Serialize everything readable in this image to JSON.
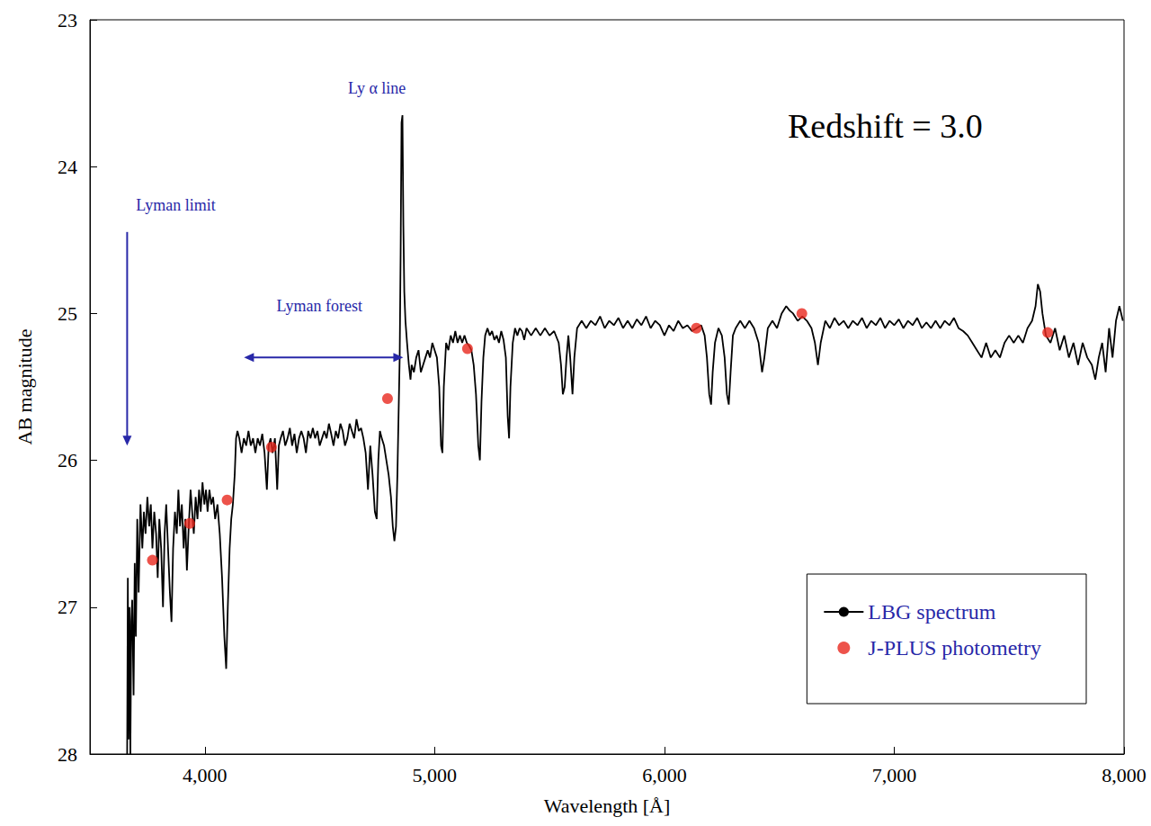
{
  "chart_data": {
    "type": "line",
    "x_label": "Wavelength [Å]",
    "y_label": "AB magnitude",
    "xlim": [
      3500,
      8000
    ],
    "xticks": [
      4000,
      5000,
      6000,
      7000,
      8000
    ],
    "ylim": [
      28,
      23
    ],
    "yticks": [
      23,
      24,
      25,
      26,
      27,
      28
    ],
    "grid": false,
    "legend": "lower right",
    "annotations": [
      "Ly α line",
      "Lyman limit",
      "Lyman forest",
      "Redshift = 3.0"
    ],
    "series": [
      {
        "name": "LBG spectrum",
        "type": "line",
        "color": "#000000",
        "line_style": "solid",
        "x": [
          3662,
          3665,
          3668,
          3672,
          3676,
          3680,
          3684,
          3690,
          3695,
          3700,
          3706,
          3712,
          3720,
          3728,
          3735,
          3742,
          3750,
          3758,
          3765,
          3772,
          3780,
          3788,
          3795,
          3802,
          3810,
          3818,
          3825,
          3832,
          3840,
          3848,
          3855,
          3862,
          3870,
          3878,
          3885,
          3892,
          3900,
          3908,
          3915,
          3922,
          3930,
          3938,
          3945,
          3952,
          3960,
          3968,
          3975,
          3982,
          3990,
          3998,
          4005,
          4012,
          4020,
          4028,
          4036,
          4045,
          4055,
          4065,
          4075,
          4085,
          4093,
          4100,
          4108,
          4115,
          4122,
          4130,
          4136,
          4142,
          4150,
          4160,
          4170,
          4180,
          4190,
          4200,
          4210,
          4220,
          4230,
          4240,
          4250,
          4260,
          4270,
          4278,
          4286,
          4295,
          4305,
          4315,
          4322,
          4330,
          4340,
          4350,
          4360,
          4370,
          4380,
          4390,
          4400,
          4410,
          4420,
          4430,
          4440,
          4450,
          4460,
          4470,
          4480,
          4490,
          4500,
          4510,
          4520,
          4530,
          4540,
          4550,
          4560,
          4570,
          4580,
          4590,
          4600,
          4610,
          4620,
          4630,
          4640,
          4650,
          4660,
          4670,
          4680,
          4690,
          4700,
          4710,
          4720,
          4730,
          4740,
          4748,
          4755,
          4762,
          4770,
          4780,
          4790,
          4800,
          4810,
          4818,
          4825,
          4832,
          4838,
          4843,
          4848,
          4852,
          4856,
          4860,
          4864,
          4868,
          4873,
          4880,
          4888,
          4895,
          4900,
          4910,
          4920,
          4930,
          4940,
          4950,
          4960,
          4970,
          4980,
          4990,
          5000,
          5010,
          5020,
          5028,
          5034,
          5040,
          5050,
          5060,
          5070,
          5080,
          5090,
          5100,
          5110,
          5120,
          5130,
          5140,
          5150,
          5160,
          5170,
          5180,
          5190,
          5197,
          5204,
          5212,
          5220,
          5230,
          5240,
          5250,
          5260,
          5270,
          5280,
          5290,
          5300,
          5310,
          5318,
          5324,
          5330,
          5340,
          5350,
          5360,
          5370,
          5380,
          5390,
          5400,
          5420,
          5440,
          5460,
          5480,
          5500,
          5520,
          5540,
          5550,
          5558,
          5566,
          5574,
          5582,
          5590,
          5600,
          5608,
          5620,
          5640,
          5660,
          5680,
          5700,
          5720,
          5740,
          5760,
          5780,
          5800,
          5820,
          5840,
          5860,
          5880,
          5900,
          5920,
          5940,
          5960,
          5980,
          6000,
          6020,
          6040,
          6060,
          6080,
          6100,
          6120,
          6140,
          6160,
          6175,
          6185,
          6195,
          6203,
          6210,
          6220,
          6235,
          6250,
          6262,
          6272,
          6280,
          6288,
          6298,
          6310,
          6330,
          6350,
          6370,
          6390,
          6410,
          6425,
          6435,
          6450,
          6470,
          6490,
          6510,
          6530,
          6545,
          6560,
          6580,
          6600,
          6620,
          6640,
          6655,
          6668,
          6680,
          6700,
          6720,
          6740,
          6760,
          6780,
          6800,
          6820,
          6840,
          6860,
          6880,
          6900,
          6920,
          6940,
          6960,
          6980,
          7000,
          7020,
          7040,
          7060,
          7080,
          7100,
          7120,
          7140,
          7160,
          7180,
          7200,
          7220,
          7240,
          7260,
          7280,
          7300,
          7320,
          7340,
          7360,
          7380,
          7400,
          7420,
          7440,
          7460,
          7480,
          7500,
          7520,
          7540,
          7560,
          7580,
          7600,
          7615,
          7625,
          7635,
          7645,
          7660,
          7680,
          7700,
          7720,
          7740,
          7760,
          7780,
          7800,
          7820,
          7840,
          7860,
          7875,
          7890,
          7905,
          7920,
          7935,
          7950,
          7965,
          7980,
          7995
        ],
        "values": [
          28.0,
          26.8,
          27.9,
          27.0,
          28.0,
          27.1,
          26.95,
          27.6,
          26.7,
          27.2,
          26.4,
          26.9,
          26.3,
          26.6,
          26.35,
          26.5,
          26.25,
          26.45,
          26.3,
          26.6,
          26.35,
          26.5,
          26.8,
          26.4,
          26.6,
          27.0,
          26.5,
          26.3,
          26.6,
          26.9,
          27.1,
          26.6,
          26.35,
          26.5,
          26.2,
          26.45,
          26.3,
          26.6,
          26.4,
          26.75,
          26.45,
          26.2,
          26.35,
          26.5,
          26.25,
          26.4,
          26.2,
          26.35,
          26.15,
          26.3,
          26.2,
          26.35,
          26.2,
          26.3,
          26.25,
          26.4,
          26.3,
          26.5,
          26.8,
          27.2,
          27.42,
          27.0,
          26.6,
          26.4,
          26.3,
          26.1,
          25.85,
          25.8,
          25.85,
          25.95,
          25.85,
          25.9,
          25.8,
          25.9,
          25.85,
          25.95,
          25.85,
          25.9,
          25.82,
          25.95,
          26.2,
          25.9,
          25.85,
          25.95,
          25.85,
          26.2,
          25.9,
          25.85,
          25.8,
          25.9,
          25.85,
          25.78,
          25.9,
          25.82,
          25.95,
          25.85,
          25.8,
          25.85,
          25.95,
          25.8,
          25.85,
          25.78,
          25.85,
          25.8,
          25.9,
          25.85,
          25.8,
          25.85,
          25.75,
          25.82,
          25.9,
          25.8,
          25.85,
          25.75,
          25.8,
          25.9,
          25.85,
          25.75,
          25.8,
          25.85,
          25.72,
          25.8,
          25.78,
          25.85,
          25.95,
          26.2,
          25.9,
          26.1,
          26.35,
          26.4,
          26.0,
          25.8,
          25.85,
          25.9,
          26.0,
          26.1,
          26.25,
          26.45,
          26.55,
          26.45,
          26.1,
          25.7,
          25.3,
          24.6,
          23.7,
          23.65,
          24.4,
          24.85,
          25.05,
          25.2,
          25.35,
          25.45,
          25.35,
          25.4,
          25.3,
          25.25,
          25.4,
          25.35,
          25.3,
          25.25,
          25.3,
          25.2,
          25.25,
          25.3,
          25.5,
          25.9,
          25.95,
          25.5,
          25.2,
          25.25,
          25.15,
          25.2,
          25.12,
          25.2,
          25.15,
          25.2,
          25.15,
          25.2,
          25.22,
          25.25,
          25.35,
          25.55,
          25.9,
          26.0,
          25.6,
          25.3,
          25.15,
          25.1,
          25.15,
          25.12,
          25.18,
          25.15,
          25.2,
          25.12,
          25.18,
          25.3,
          25.7,
          25.85,
          25.5,
          25.2,
          25.1,
          25.15,
          25.1,
          25.12,
          25.18,
          25.1,
          25.15,
          25.1,
          25.15,
          25.1,
          25.15,
          25.12,
          25.2,
          25.35,
          25.55,
          25.5,
          25.3,
          25.15,
          25.3,
          25.55,
          25.3,
          25.1,
          25.05,
          25.1,
          25.05,
          25.08,
          25.02,
          25.1,
          25.05,
          25.08,
          25.03,
          25.1,
          25.05,
          25.1,
          25.04,
          25.08,
          25.02,
          25.1,
          25.05,
          25.08,
          25.15,
          25.08,
          25.12,
          25.05,
          25.1,
          25.08,
          25.12,
          25.1,
          25.08,
          25.15,
          25.3,
          25.55,
          25.62,
          25.4,
          25.2,
          25.1,
          25.15,
          25.3,
          25.55,
          25.62,
          25.4,
          25.15,
          25.1,
          25.05,
          25.1,
          25.05,
          25.1,
          25.2,
          25.4,
          25.3,
          25.1,
          25.05,
          25.1,
          25.0,
          24.95,
          24.98,
          25.0,
          25.05,
          25.02,
          25.05,
          25.1,
          25.2,
          25.35,
          25.2,
          25.05,
          25.1,
          25.03,
          25.08,
          25.05,
          25.1,
          25.05,
          25.08,
          25.03,
          25.1,
          25.05,
          25.08,
          25.03,
          25.1,
          25.05,
          25.08,
          25.04,
          25.1,
          25.05,
          25.08,
          25.03,
          25.1,
          25.06,
          25.1,
          25.05,
          25.1,
          25.05,
          25.08,
          25.03,
          25.1,
          25.12,
          25.15,
          25.2,
          25.25,
          25.3,
          25.2,
          25.3,
          25.25,
          25.3,
          25.2,
          25.15,
          25.2,
          25.15,
          25.2,
          25.1,
          25.05,
          24.95,
          24.8,
          24.85,
          25.0,
          25.15,
          25.2,
          25.1,
          25.25,
          25.15,
          25.3,
          25.2,
          25.35,
          25.2,
          25.3,
          25.35,
          25.45,
          25.3,
          25.2,
          25.4,
          25.1,
          25.3,
          25.05,
          24.95,
          25.05
        ]
      },
      {
        "name": "J-PLUS photometry",
        "type": "scatter",
        "color": "#e8281e",
        "marker": "circle",
        "x": [
          3772,
          3934,
          4097,
          4290,
          4795,
          5143,
          6139,
          6598,
          7668
        ],
        "values": [
          26.68,
          26.43,
          26.27,
          25.91,
          25.58,
          25.24,
          25.1,
          25.0,
          25.13
        ]
      }
    ]
  }
}
